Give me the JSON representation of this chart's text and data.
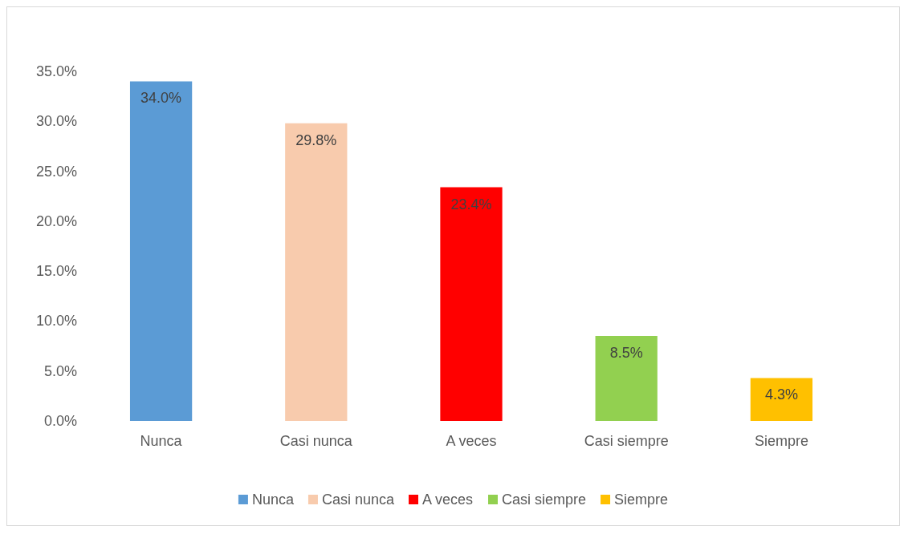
{
  "chart_data": {
    "type": "bar",
    "categories": [
      "Nunca",
      "Casi nunca",
      "A veces",
      "Casi siempre",
      "Siempre"
    ],
    "series": [
      {
        "name": "Nunca",
        "color": "#5b9bd5",
        "values": [
          34.0,
          null,
          null,
          null,
          null
        ],
        "value_labels": [
          "34.0%",
          null,
          null,
          null,
          null
        ]
      },
      {
        "name": "Casi nunca",
        "color": "#f8cbad",
        "values": [
          null,
          29.8,
          null,
          null,
          null
        ],
        "value_labels": [
          null,
          "29.8%",
          null,
          null,
          null
        ]
      },
      {
        "name": "A veces",
        "color": "#ff0000",
        "values": [
          null,
          null,
          23.4,
          null,
          null
        ],
        "value_labels": [
          null,
          null,
          "23.4%",
          null,
          null
        ]
      },
      {
        "name": "Casi siempre",
        "color": "#92d050",
        "values": [
          null,
          null,
          null,
          8.5,
          null
        ],
        "value_labels": [
          null,
          null,
          null,
          "8.5%",
          null
        ]
      },
      {
        "name": "Siempre",
        "color": "#ffc000",
        "values": [
          null,
          null,
          null,
          null,
          4.3
        ],
        "value_labels": [
          null,
          null,
          null,
          null,
          "4.3%"
        ]
      }
    ],
    "stacked": true,
    "ylim": [
      0,
      35
    ],
    "yticks": [
      {
        "value": 0,
        "label": "0.0%"
      },
      {
        "value": 5,
        "label": "5.0%"
      },
      {
        "value": 10,
        "label": "10.0%"
      },
      {
        "value": 15,
        "label": "15.0%"
      },
      {
        "value": 20,
        "label": "20.0%"
      },
      {
        "value": 25,
        "label": "25.0%"
      },
      {
        "value": 30,
        "label": "30.0%"
      },
      {
        "value": 35,
        "label": "35.0%"
      }
    ],
    "grid": false,
    "legend": "bottom"
  }
}
